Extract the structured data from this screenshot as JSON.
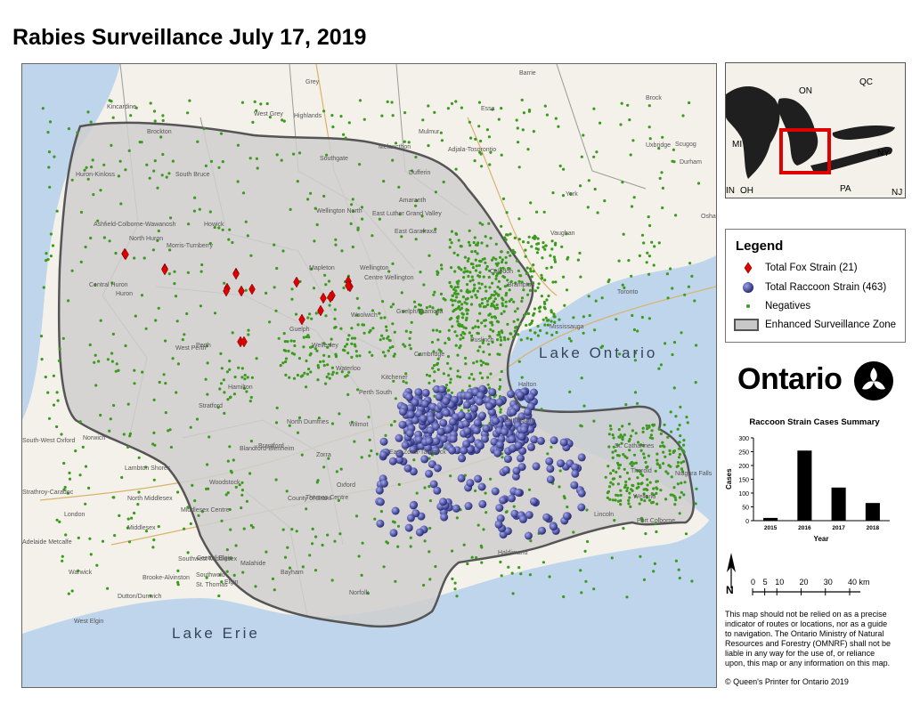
{
  "title": "Rabies Surveillance July 17, 2019",
  "inset": {
    "labels": [
      "ON",
      "QC",
      "MI",
      "NY",
      "PA",
      "OH",
      "IN",
      "NJ"
    ]
  },
  "legend": {
    "title": "Legend",
    "items": [
      {
        "label": "Total Fox Strain (21)",
        "symbol": "red-diamond",
        "color": "#e00000"
      },
      {
        "label": "Total Raccoon Strain (463)",
        "symbol": "blue-sphere",
        "color": "#2a2f8a"
      },
      {
        "label": "Negatives",
        "symbol": "green-dot",
        "color": "#3c9a1f"
      },
      {
        "label": "Enhanced Surveillance Zone",
        "symbol": "grey-box",
        "color": "#c8c8c8"
      }
    ]
  },
  "logo": {
    "wordmark": "Ontario"
  },
  "chart_data": {
    "type": "bar",
    "title": "Raccoon Strain Cases Summary",
    "categories": [
      "2015",
      "2016",
      "2017",
      "2018"
    ],
    "values": [
      10,
      254,
      120,
      64
    ],
    "xlabel": "Year",
    "ylabel": "Cases",
    "ylim": [
      0,
      300
    ],
    "yticks": [
      "0",
      "50",
      "100",
      "150",
      "200",
      "250",
      "300"
    ],
    "color": "#000000"
  },
  "scale_bar": {
    "labels": [
      "0",
      "5",
      "10",
      "20",
      "30",
      "40 km"
    ]
  },
  "north_arrow": {
    "label": "N"
  },
  "disclaimer": "This map should not be relied on as a precise indicator of routes or locations, nor as a guide to navigation. The Ontario Ministry of Natural Resources and Forestry (OMNRF) shall not be liable in any way for the use of, or reliance upon, this map or any information on this map.",
  "copyright": "© Queen's Printer for Ontario 2019",
  "map": {
    "lakes": [
      "Lake Ontario",
      "Lake Erie"
    ],
    "places": [
      "Kincardine",
      "Brockton",
      "Huron-Kinloss",
      "South Bruce",
      "Grey",
      "Highlands",
      "West Grey",
      "Mulmur",
      "Melancthon",
      "Adjala-Tosorontio",
      "Essa",
      "Southgate",
      "Dufferin",
      "Amaranth",
      "East Luther Grand Valley",
      "Wellington North",
      "Ashfield-Colborne-Wawanosh",
      "Howick",
      "North Huron",
      "Morris-Turnberry",
      "Central Huron",
      "Huron",
      "Mapleton",
      "Wellington",
      "Centre Wellington",
      "East Garafraxa",
      "Caledon",
      "Brampton",
      "Mississauga",
      "Toronto",
      "Vaughan",
      "York",
      "Uxbridge",
      "Durham",
      "Scugog",
      "Brock",
      "Barrie",
      "Perth",
      "West Perth",
      "Woolwich",
      "Guelph/Eramosa",
      "Guelph",
      "Wellesley",
      "Waterloo",
      "Kitchener",
      "Cambridge",
      "Puslinch",
      "Halton",
      "Burlington",
      "Hamilton",
      "Stratford",
      "Perth South",
      "North Dumfries",
      "Wilmot",
      "East Zorra-Tavistock",
      "Blandford-Blenheim",
      "Brantford",
      "Zorra",
      "Oxford",
      "Woodstock",
      "County of Brant",
      "Thames Centre",
      "South-West Oxford",
      "Norwich",
      "Lambton Shores",
      "North Middlesex",
      "Middlesex Centre",
      "Middlesex",
      "London",
      "Strathroy-Caradoc",
      "Adelaide Metcalfe",
      "Warwick",
      "Brooke-Alvinston",
      "Southwest Middlesex",
      "Southwold",
      "St. Thomas",
      "Elgin",
      "Central Elgin",
      "Malahide",
      "Bayham",
      "Norfolk",
      "Dutton/Dunwich",
      "West Elgin",
      "Haldimand",
      "St. Catharines",
      "Thorold",
      "Niagara Falls",
      "Welland",
      "Port Colborne",
      "Lincoln",
      "Oshawa"
    ]
  }
}
